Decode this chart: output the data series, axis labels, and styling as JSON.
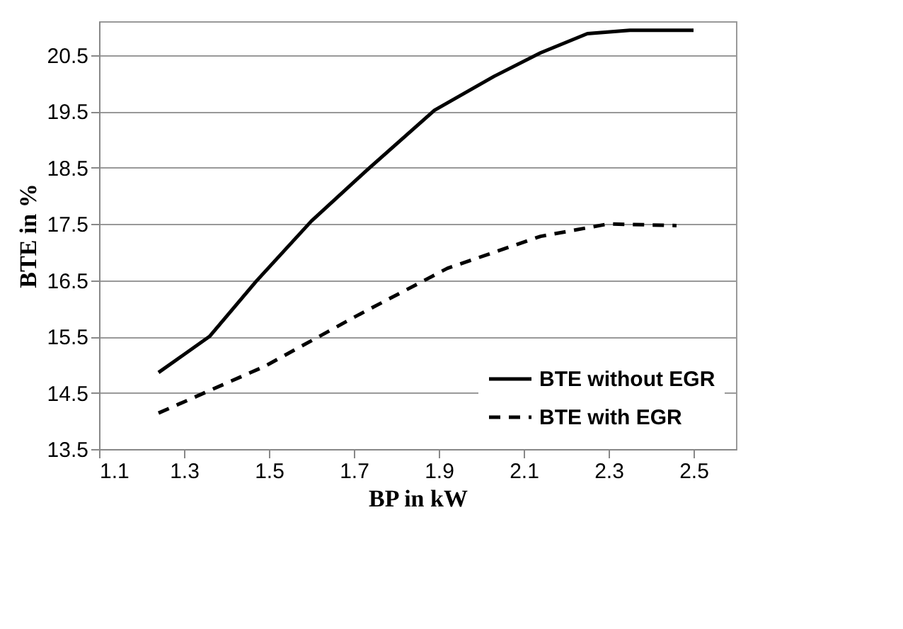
{
  "chart_data": {
    "type": "line",
    "xlabel": "BP in kW",
    "ylabel": "BTE in %",
    "xlim": [
      1.1,
      2.6
    ],
    "xticks": [
      1.1,
      1.3,
      1.5,
      1.7,
      1.9,
      2.1,
      2.3,
      2.5
    ],
    "ylim": [
      13.5,
      21.1
    ],
    "yticks": [
      13.5,
      14.5,
      15.5,
      16.5,
      17.5,
      18.5,
      19.5,
      20.5
    ],
    "grid": "y",
    "legend": "bottom right",
    "marker": "none",
    "series": [
      {
        "name": "BTE without EGR",
        "color": "#000000",
        "line_style": "solid",
        "x": [
          1.24,
          1.36,
          1.47,
          1.6,
          1.73,
          1.89,
          2.03,
          2.14,
          2.25,
          2.35,
          2.5
        ],
        "values": [
          14.86,
          15.5,
          16.48,
          17.55,
          18.45,
          19.52,
          20.12,
          20.54,
          20.88,
          20.94,
          20.94
        ]
      },
      {
        "name": "BTE with EGR",
        "color": "#000000",
        "line_style": "dashed",
        "x": [
          1.24,
          1.49,
          1.71,
          1.92,
          2.14,
          2.3,
          2.46
        ],
        "values": [
          14.14,
          14.97,
          15.88,
          16.71,
          17.28,
          17.5,
          17.47
        ]
      }
    ]
  }
}
